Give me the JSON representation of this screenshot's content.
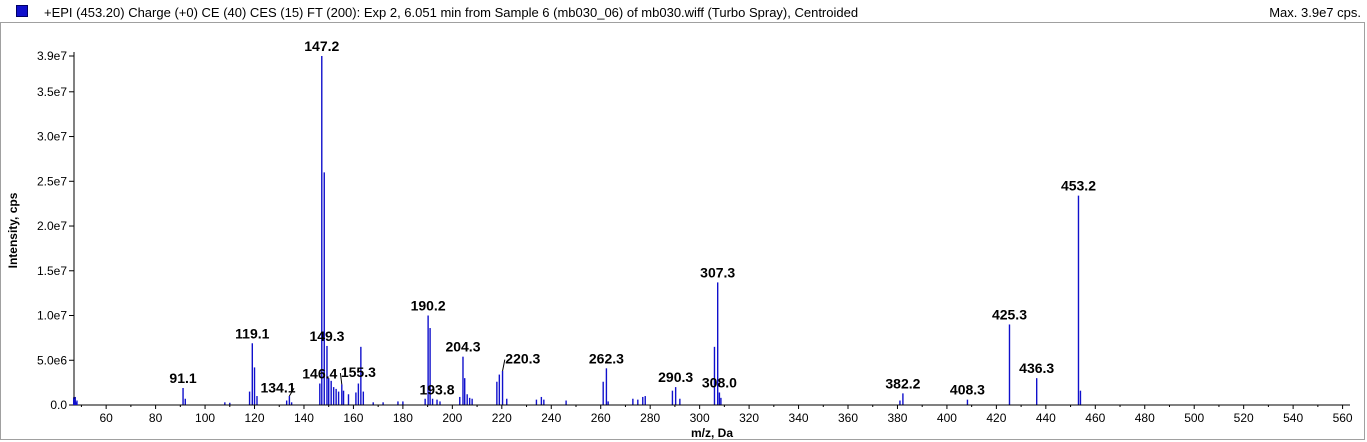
{
  "header": {
    "title": "+EPI (453.20) Charge (+0) CE (40) CES (15) FT (200): Exp 2, 6.051 min from Sample 6 (mb030_06) of mb030.wiff (Turbo Spray), Centroided",
    "max_label": "Max. 3.9e7 cps."
  },
  "colors": {
    "series": "#1010cc",
    "axis": "#000000",
    "frame": "#a0a0a0"
  },
  "chart_data": {
    "type": "bar",
    "xlabel": "m/z, Da",
    "ylabel": "Intensity, cps",
    "xlim": [
      47,
      563
    ],
    "ylim": [
      0,
      39000000
    ],
    "x_ticks": [
      60,
      80,
      100,
      120,
      140,
      160,
      180,
      200,
      220,
      240,
      260,
      280,
      300,
      320,
      340,
      360,
      380,
      400,
      420,
      440,
      460,
      480,
      500,
      520,
      540,
      560
    ],
    "x_tick_labels": [
      "60",
      "80",
      "100",
      "120",
      "140",
      "160",
      "180",
      "200",
      "220",
      "240",
      "260",
      "280",
      "300",
      "320",
      "340",
      "360",
      "380",
      "400",
      "420",
      "440",
      "460",
      "480",
      "500",
      "520",
      "540",
      "560"
    ],
    "y_ticks": [
      0,
      5000000,
      10000000,
      15000000,
      20000000,
      25000000,
      30000000,
      35000000,
      39000000
    ],
    "y_tick_labels": [
      "0.0",
      "5.0e6",
      "1.0e7",
      "1.5e7",
      "2.0e7",
      "2.5e7",
      "3.0e7",
      "3.5e7",
      "3.9e7"
    ],
    "peaks": [
      {
        "mz": 47.5,
        "intensity": 900000
      },
      {
        "mz": 48.2,
        "intensity": 500000
      },
      {
        "mz": 91.1,
        "intensity": 1900000
      },
      {
        "mz": 92.0,
        "intensity": 700000
      },
      {
        "mz": 108.0,
        "intensity": 300000
      },
      {
        "mz": 110.0,
        "intensity": 250000
      },
      {
        "mz": 118.0,
        "intensity": 1500000
      },
      {
        "mz": 119.1,
        "intensity": 6900000
      },
      {
        "mz": 120.0,
        "intensity": 4200000
      },
      {
        "mz": 121.0,
        "intensity": 1000000
      },
      {
        "mz": 133.0,
        "intensity": 500000
      },
      {
        "mz": 134.1,
        "intensity": 1000000
      },
      {
        "mz": 135.0,
        "intensity": 300000
      },
      {
        "mz": 146.4,
        "intensity": 2400000
      },
      {
        "mz": 147.2,
        "intensity": 39000000
      },
      {
        "mz": 148.2,
        "intensity": 26000000
      },
      {
        "mz": 149.3,
        "intensity": 6600000
      },
      {
        "mz": 150.0,
        "intensity": 3000000
      },
      {
        "mz": 151.0,
        "intensity": 2700000
      },
      {
        "mz": 152.0,
        "intensity": 2000000
      },
      {
        "mz": 153.0,
        "intensity": 1800000
      },
      {
        "mz": 154.0,
        "intensity": 1500000
      },
      {
        "mz": 155.3,
        "intensity": 2300000
      },
      {
        "mz": 156.0,
        "intensity": 1600000
      },
      {
        "mz": 158.0,
        "intensity": 1200000
      },
      {
        "mz": 161.0,
        "intensity": 1400000
      },
      {
        "mz": 162.0,
        "intensity": 2400000
      },
      {
        "mz": 163.0,
        "intensity": 6500000
      },
      {
        "mz": 164.0,
        "intensity": 1500000
      },
      {
        "mz": 168.0,
        "intensity": 300000
      },
      {
        "mz": 172.0,
        "intensity": 300000
      },
      {
        "mz": 178.0,
        "intensity": 400000
      },
      {
        "mz": 180.0,
        "intensity": 400000
      },
      {
        "mz": 189.0,
        "intensity": 700000
      },
      {
        "mz": 190.2,
        "intensity": 10000000
      },
      {
        "mz": 191.0,
        "intensity": 8600000
      },
      {
        "mz": 192.0,
        "intensity": 700000
      },
      {
        "mz": 193.8,
        "intensity": 600000
      },
      {
        "mz": 195.0,
        "intensity": 400000
      },
      {
        "mz": 203.0,
        "intensity": 900000
      },
      {
        "mz": 204.3,
        "intensity": 5400000
      },
      {
        "mz": 205.0,
        "intensity": 3000000
      },
      {
        "mz": 206.0,
        "intensity": 1200000
      },
      {
        "mz": 207.0,
        "intensity": 800000
      },
      {
        "mz": 208.0,
        "intensity": 700000
      },
      {
        "mz": 218.0,
        "intensity": 2600000
      },
      {
        "mz": 219.0,
        "intensity": 3400000
      },
      {
        "mz": 220.3,
        "intensity": 3800000
      },
      {
        "mz": 222.0,
        "intensity": 700000
      },
      {
        "mz": 234.0,
        "intensity": 600000
      },
      {
        "mz": 236.0,
        "intensity": 900000
      },
      {
        "mz": 237.0,
        "intensity": 600000
      },
      {
        "mz": 246.0,
        "intensity": 500000
      },
      {
        "mz": 261.0,
        "intensity": 2600000
      },
      {
        "mz": 262.3,
        "intensity": 4100000
      },
      {
        "mz": 263.0,
        "intensity": 400000
      },
      {
        "mz": 273.0,
        "intensity": 700000
      },
      {
        "mz": 275.0,
        "intensity": 600000
      },
      {
        "mz": 277.0,
        "intensity": 900000
      },
      {
        "mz": 278.0,
        "intensity": 1000000
      },
      {
        "mz": 289.0,
        "intensity": 1600000
      },
      {
        "mz": 290.3,
        "intensity": 2000000
      },
      {
        "mz": 292.0,
        "intensity": 700000
      },
      {
        "mz": 306.0,
        "intensity": 6500000
      },
      {
        "mz": 307.3,
        "intensity": 13700000
      },
      {
        "mz": 308.0,
        "intensity": 1400000
      },
      {
        "mz": 308.6,
        "intensity": 800000
      },
      {
        "mz": 381.0,
        "intensity": 500000
      },
      {
        "mz": 382.2,
        "intensity": 1300000
      },
      {
        "mz": 408.3,
        "intensity": 600000
      },
      {
        "mz": 425.3,
        "intensity": 9000000
      },
      {
        "mz": 436.3,
        "intensity": 3000000
      },
      {
        "mz": 453.2,
        "intensity": 23400000
      },
      {
        "mz": 454.0,
        "intensity": 1600000
      }
    ],
    "annotations": [
      {
        "text": "91.1",
        "mz": 91.1,
        "intensity": 1900000
      },
      {
        "text": "119.1",
        "mz": 119.1,
        "intensity": 6900000
      },
      {
        "text": "134.1",
        "mz": 134.1,
        "intensity": 1000000,
        "leader": true,
        "label_mz": 129.5,
        "label_intensity": 1200000
      },
      {
        "text": "146.4",
        "mz": 146.4,
        "intensity": 2400000
      },
      {
        "text": "147.2",
        "mz": 147.2,
        "intensity": 39000000
      },
      {
        "text": "149.3",
        "mz": 149.3,
        "intensity": 6600000
      },
      {
        "text": "155.3",
        "mz": 155.3,
        "intensity": 2300000,
        "leader": true,
        "label_mz": 162.0,
        "label_intensity": 2900000
      },
      {
        "text": "190.2",
        "mz": 190.2,
        "intensity": 10000000
      },
      {
        "text": "193.8",
        "mz": 193.8,
        "intensity": 600000
      },
      {
        "text": "204.3",
        "mz": 204.3,
        "intensity": 5400000
      },
      {
        "text": "220.3",
        "mz": 220.3,
        "intensity": 3800000,
        "leader": true,
        "label_mz": 228.5,
        "label_intensity": 4400000
      },
      {
        "text": "262.3",
        "mz": 262.3,
        "intensity": 4100000
      },
      {
        "text": "290.3",
        "mz": 290.3,
        "intensity": 2000000
      },
      {
        "text": "307.3",
        "mz": 307.3,
        "intensity": 13700000
      },
      {
        "text": "308.0",
        "mz": 308.0,
        "intensity": 1400000
      },
      {
        "text": "382.2",
        "mz": 382.2,
        "intensity": 1300000
      },
      {
        "text": "408.3",
        "mz": 408.3,
        "intensity": 600000
      },
      {
        "text": "425.3",
        "mz": 425.3,
        "intensity": 9000000
      },
      {
        "text": "436.3",
        "mz": 436.3,
        "intensity": 3000000
      },
      {
        "text": "453.2",
        "mz": 453.2,
        "intensity": 23400000
      }
    ]
  }
}
